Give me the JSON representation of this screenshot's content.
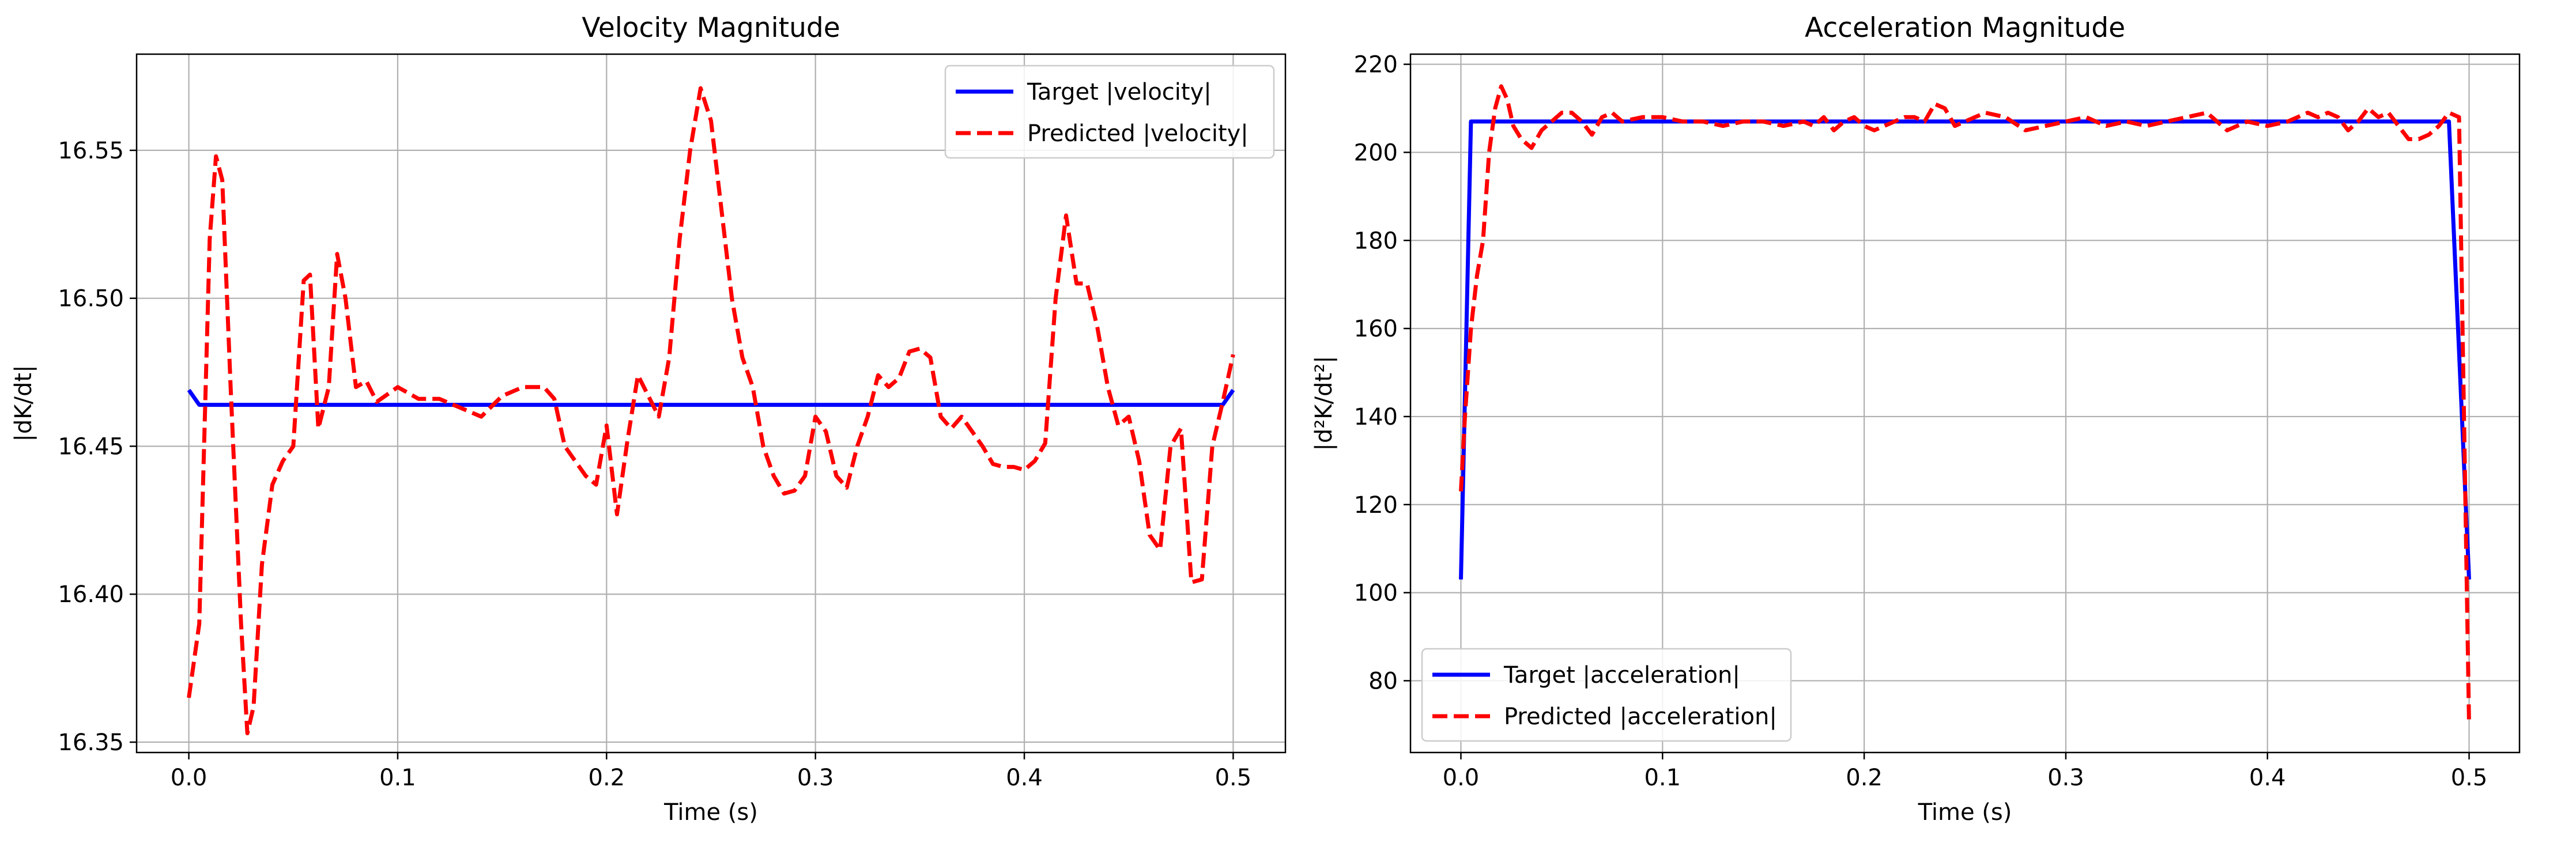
{
  "chart_data": [
    {
      "type": "line",
      "title": "Velocity Magnitude",
      "xlabel": "Time (s)",
      "ylabel": "|dK/dt|",
      "xlim": [
        -0.025,
        0.525
      ],
      "ylim": [
        16.3465,
        16.5825
      ],
      "xticks": [
        0.0,
        0.1,
        0.2,
        0.3,
        0.4,
        0.5
      ],
      "xtick_labels": [
        "0.0",
        "0.1",
        "0.2",
        "0.3",
        "0.4",
        "0.5"
      ],
      "yticks": [
        16.35,
        16.4,
        16.45,
        16.5,
        16.55
      ],
      "ytick_labels": [
        "16.35",
        "16.40",
        "16.45",
        "16.50",
        "16.55"
      ],
      "grid": true,
      "legend_position": "upper right",
      "series": [
        {
          "name": "Target |velocity|",
          "color": "#0000ff",
          "style": "solid",
          "x": [
            0.0,
            0.005,
            0.25,
            0.495,
            0.5
          ],
          "y": [
            16.469,
            16.464,
            16.464,
            16.464,
            16.469
          ]
        },
        {
          "name": "Predicted |velocity|",
          "color": "#ff0000",
          "style": "dashed",
          "x": [
            0.0,
            0.005,
            0.01,
            0.013,
            0.016,
            0.02,
            0.025,
            0.028,
            0.031,
            0.035,
            0.04,
            0.045,
            0.05,
            0.055,
            0.058,
            0.062,
            0.067,
            0.071,
            0.075,
            0.08,
            0.085,
            0.09,
            0.1,
            0.11,
            0.12,
            0.13,
            0.14,
            0.15,
            0.16,
            0.17,
            0.175,
            0.18,
            0.19,
            0.195,
            0.2,
            0.205,
            0.21,
            0.215,
            0.22,
            0.225,
            0.23,
            0.235,
            0.24,
            0.245,
            0.25,
            0.255,
            0.26,
            0.265,
            0.27,
            0.275,
            0.28,
            0.285,
            0.29,
            0.295,
            0.3,
            0.305,
            0.31,
            0.315,
            0.32,
            0.325,
            0.33,
            0.335,
            0.34,
            0.345,
            0.35,
            0.355,
            0.36,
            0.365,
            0.37,
            0.375,
            0.38,
            0.385,
            0.39,
            0.395,
            0.4,
            0.405,
            0.41,
            0.415,
            0.42,
            0.425,
            0.43,
            0.435,
            0.44,
            0.445,
            0.45,
            0.455,
            0.46,
            0.465,
            0.47,
            0.475,
            0.48,
            0.485,
            0.49,
            0.495,
            0.5
          ],
          "y": [
            16.365,
            16.39,
            16.52,
            16.548,
            16.54,
            16.47,
            16.39,
            16.353,
            16.362,
            16.41,
            16.437,
            16.445,
            16.45,
            16.506,
            16.508,
            16.456,
            16.47,
            16.515,
            16.5,
            16.47,
            16.472,
            16.465,
            16.47,
            16.466,
            16.466,
            16.463,
            16.46,
            16.467,
            16.47,
            16.47,
            16.466,
            16.45,
            16.44,
            16.437,
            16.457,
            16.427,
            16.452,
            16.474,
            16.467,
            16.46,
            16.48,
            16.52,
            16.55,
            16.571,
            16.56,
            16.53,
            16.5,
            16.48,
            16.47,
            16.45,
            16.44,
            16.434,
            16.435,
            16.44,
            16.46,
            16.455,
            16.44,
            16.436,
            16.45,
            16.46,
            16.474,
            16.47,
            16.473,
            16.482,
            16.483,
            16.48,
            16.46,
            16.456,
            16.46,
            16.455,
            16.45,
            16.444,
            16.443,
            16.443,
            16.442,
            16.445,
            16.451,
            16.5,
            16.528,
            16.505,
            16.505,
            16.49,
            16.47,
            16.457,
            16.46,
            16.445,
            16.42,
            16.415,
            16.45,
            16.456,
            16.404,
            16.405,
            16.45,
            16.465,
            16.481
          ]
        }
      ]
    },
    {
      "type": "line",
      "title": "Acceleration Magnitude",
      "xlabel": "Time (s)",
      "ylabel": "|d²K/dt²|",
      "xlim": [
        -0.025,
        0.525
      ],
      "ylim": [
        63.7,
        222.3
      ],
      "xticks": [
        0.0,
        0.1,
        0.2,
        0.3,
        0.4,
        0.5
      ],
      "xtick_labels": [
        "0.0",
        "0.1",
        "0.2",
        "0.3",
        "0.4",
        "0.5"
      ],
      "yticks": [
        80,
        100,
        120,
        140,
        160,
        180,
        200,
        220
      ],
      "ytick_labels": [
        "80",
        "100",
        "120",
        "140",
        "160",
        "180",
        "200",
        "220"
      ],
      "grid": true,
      "legend_position": "lower left",
      "series": [
        {
          "name": "Target |acceleration|",
          "color": "#0000ff",
          "style": "solid",
          "x": [
            0.0,
            0.005,
            0.25,
            0.49,
            0.5
          ],
          "y": [
            103,
            207,
            207,
            207,
            103
          ]
        },
        {
          "name": "Predicted |acceleration|",
          "color": "#ff0000",
          "style": "dashed",
          "x": [
            0.0,
            0.002,
            0.005,
            0.008,
            0.011,
            0.014,
            0.017,
            0.02,
            0.023,
            0.026,
            0.03,
            0.035,
            0.04,
            0.045,
            0.05,
            0.055,
            0.06,
            0.065,
            0.07,
            0.075,
            0.08,
            0.09,
            0.1,
            0.11,
            0.12,
            0.13,
            0.14,
            0.15,
            0.16,
            0.17,
            0.175,
            0.18,
            0.185,
            0.19,
            0.195,
            0.2,
            0.205,
            0.21,
            0.215,
            0.22,
            0.225,
            0.23,
            0.235,
            0.24,
            0.245,
            0.25,
            0.26,
            0.27,
            0.28,
            0.29,
            0.3,
            0.31,
            0.32,
            0.33,
            0.34,
            0.35,
            0.36,
            0.37,
            0.38,
            0.39,
            0.4,
            0.41,
            0.42,
            0.425,
            0.43,
            0.435,
            0.44,
            0.445,
            0.45,
            0.455,
            0.46,
            0.465,
            0.47,
            0.475,
            0.48,
            0.485,
            0.49,
            0.495,
            0.5
          ],
          "y": [
            123,
            140,
            160,
            172,
            180,
            200,
            210,
            215,
            212,
            206,
            203,
            201,
            205,
            207,
            209,
            209,
            207,
            204,
            208,
            209,
            207,
            208,
            208,
            207,
            207,
            206,
            207,
            207,
            206,
            207,
            206,
            208,
            205,
            207,
            208,
            206,
            205,
            206,
            207,
            208,
            208,
            207,
            211,
            210,
            206,
            207,
            209,
            208,
            205,
            206,
            207,
            208,
            206,
            207,
            206,
            207,
            208,
            209,
            205,
            207,
            206,
            207,
            209,
            208,
            209,
            208,
            205,
            207,
            210,
            208,
            209,
            206,
            203,
            203,
            204,
            206,
            209,
            208,
            70
          ]
        }
      ]
    }
  ]
}
